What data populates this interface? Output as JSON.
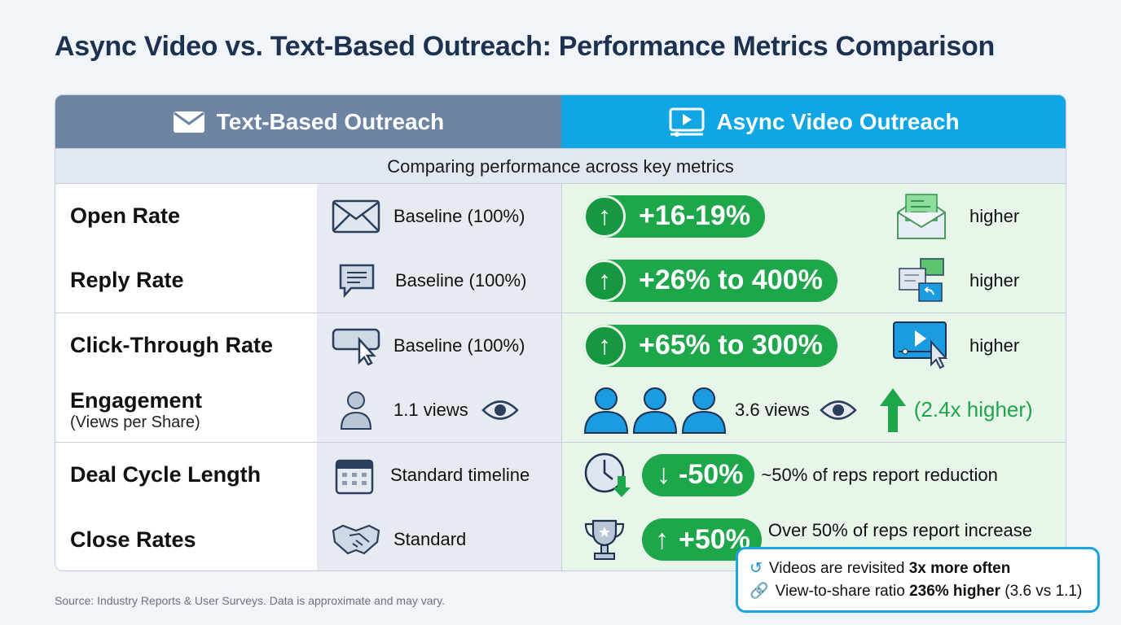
{
  "title": "Async Video vs. Text-Based Outreach: Performance Metrics Comparison",
  "header": {
    "left": "Text-Based Outreach",
    "right": "Async Video Outreach",
    "left_icon": "envelope-icon",
    "right_icon": "video-player-icon"
  },
  "subtitle": "Comparing performance across key metrics",
  "rows": [
    {
      "label": "Open Rate",
      "text_value": "Baseline (100%)",
      "video_value": "+16-19%",
      "video_note": "higher",
      "direction": "up"
    },
    {
      "label": "Reply Rate",
      "text_value": "Baseline (100%)",
      "video_value": "+26% to 400%",
      "video_note": "higher",
      "direction": "up"
    },
    {
      "label": "Click-Through Rate",
      "text_value": "Baseline (100%)",
      "video_value": "+65% to 300%",
      "video_note": "higher",
      "direction": "up"
    },
    {
      "label": "Engagement",
      "sublabel": "(Views per Share)",
      "text_value": "1.1 views",
      "video_value": "3.6 views",
      "video_note": "(2.4x higher)",
      "direction": "up"
    },
    {
      "label": "Deal Cycle Length",
      "text_value": "Standard timeline",
      "video_value": "-50%",
      "video_note": "~50% of reps report reduction",
      "direction": "down"
    },
    {
      "label": "Close Rates",
      "text_value": "Standard",
      "video_value": "+50%",
      "video_note": "Over 50% of reps report increase",
      "direction": "up"
    }
  ],
  "callout": {
    "line1_a": "Videos are revisited ",
    "line1_b": "3x more often",
    "line2_a": "View-to-share ratio ",
    "line2_b": "236% higher",
    "line2_c": " (3.6 vs 1.1)"
  },
  "footer": "Source: Industry Reports & User Surveys. Data is approximate and may vary.",
  "colors": {
    "green": "#1ea64a",
    "blue": "#0fa6e3",
    "slate": "#6e84a3"
  }
}
